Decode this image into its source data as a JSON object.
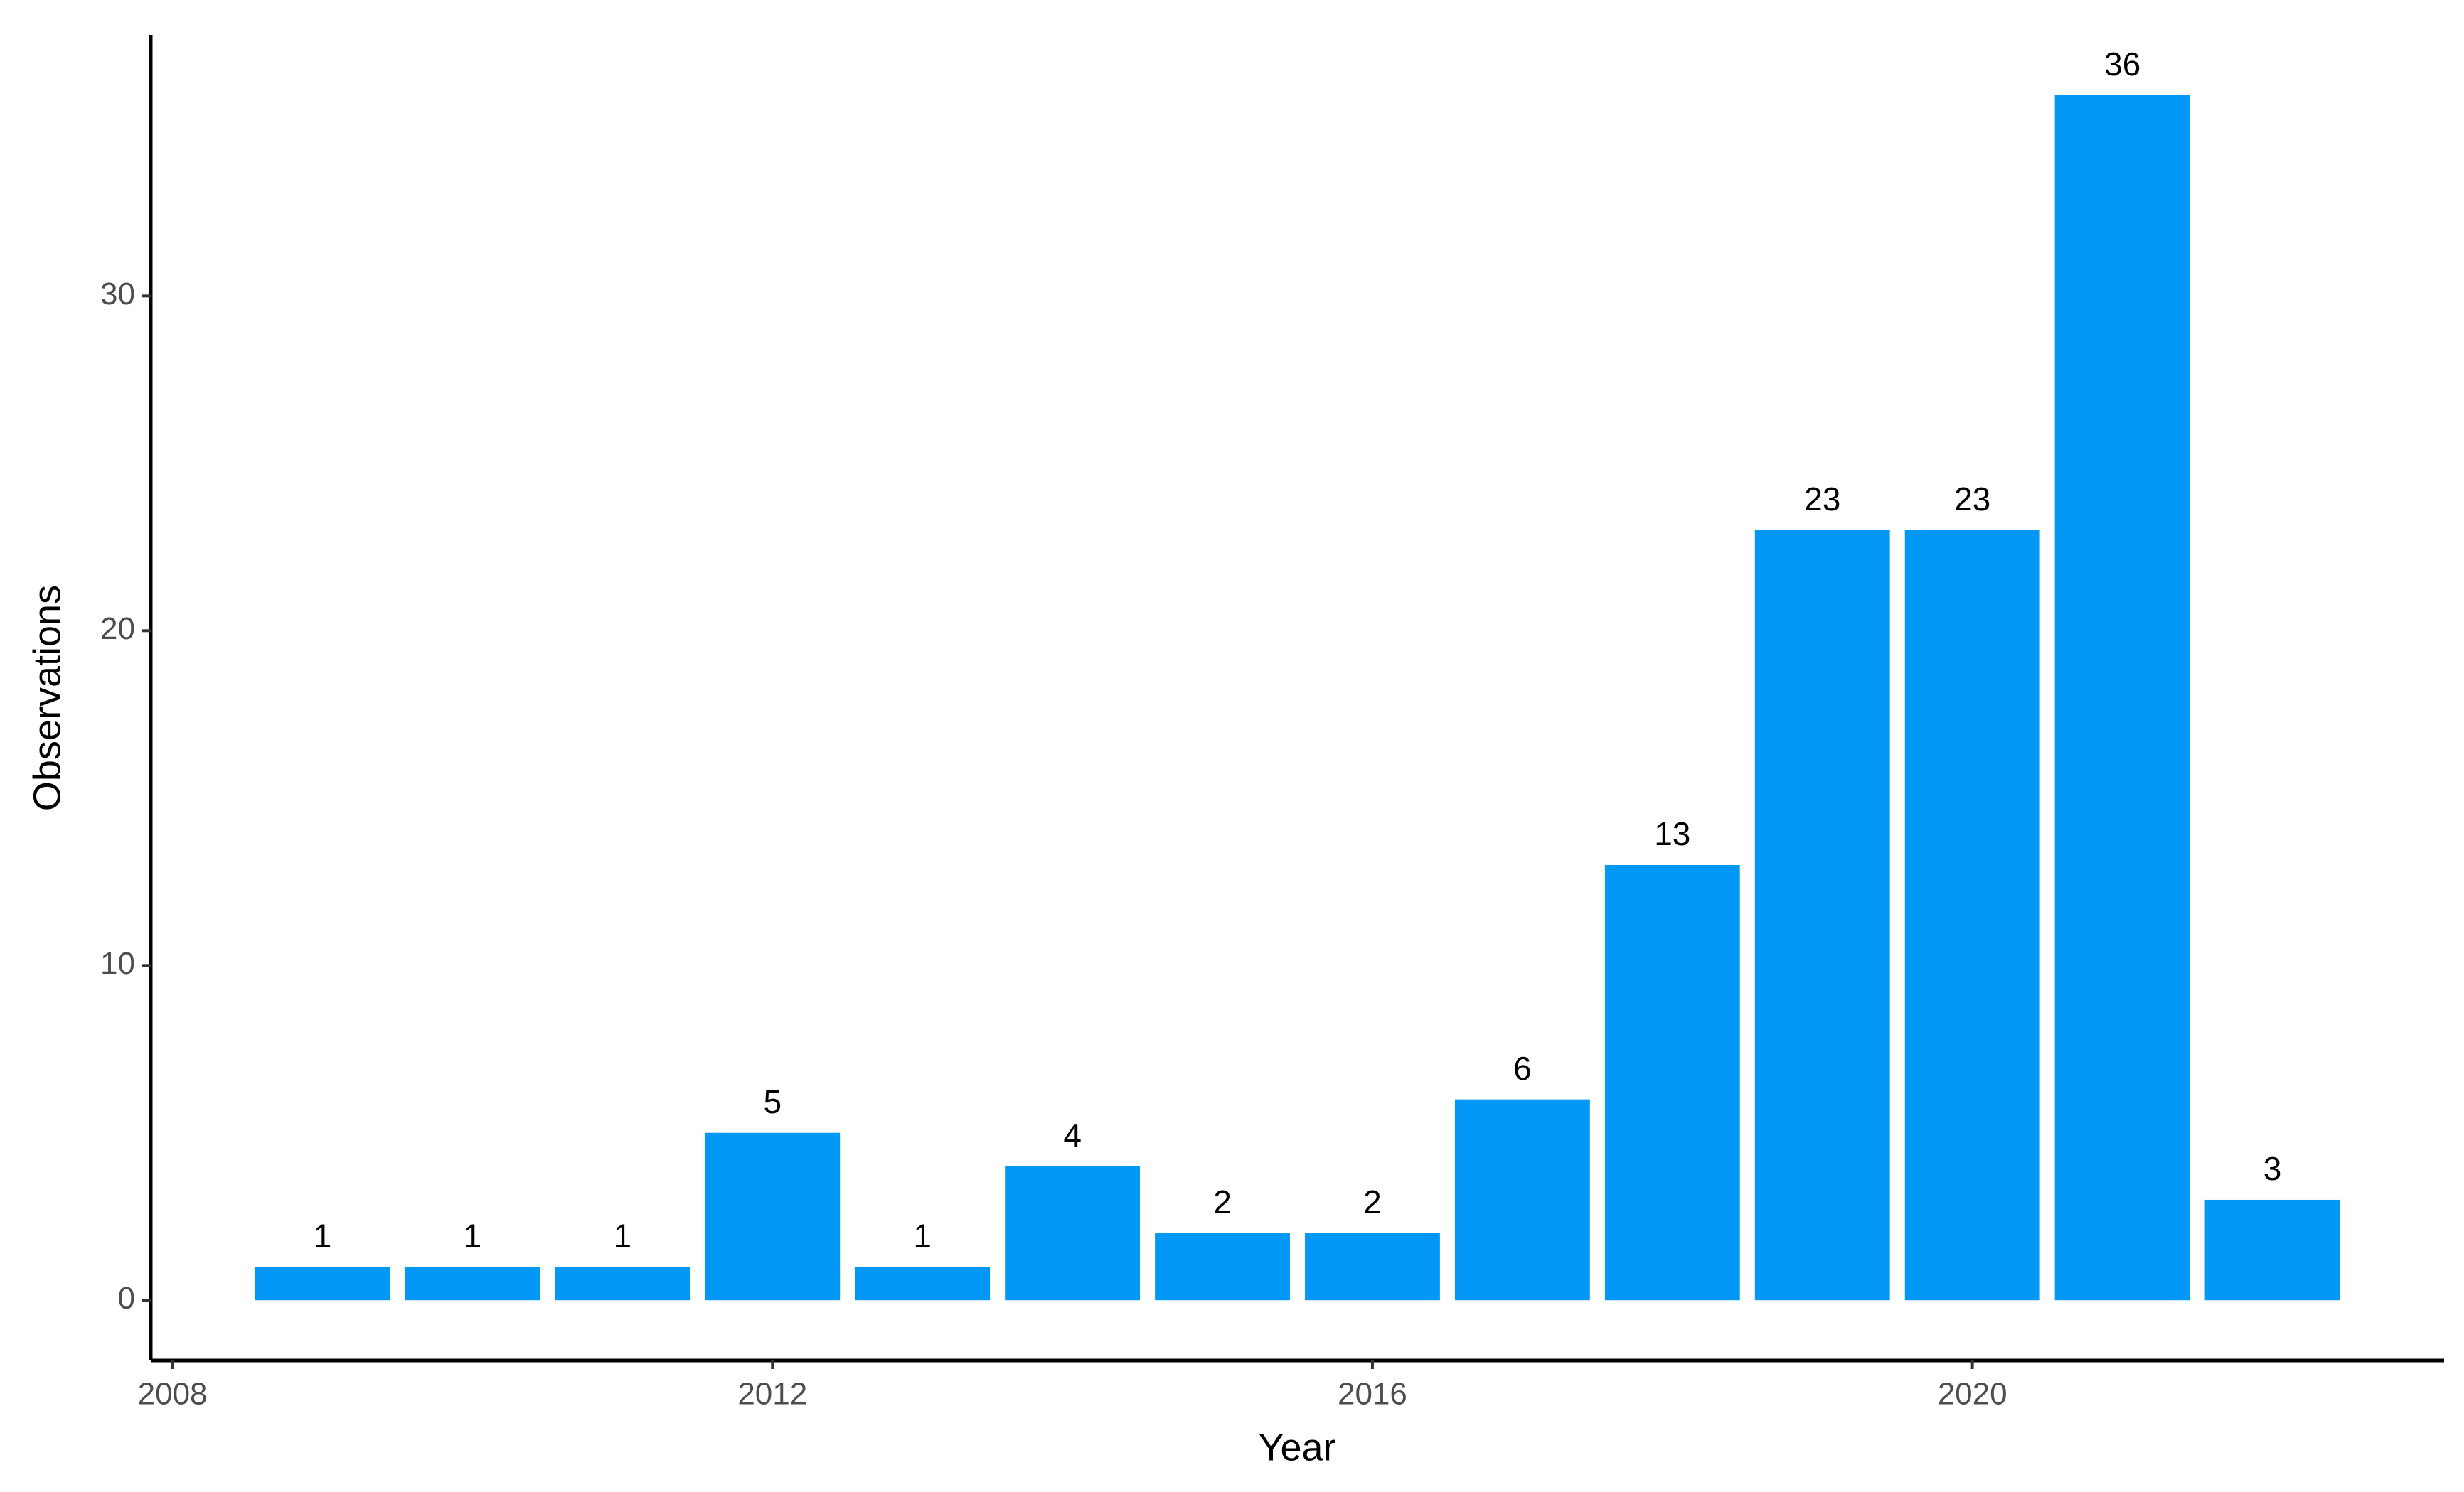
{
  "chart_data": {
    "type": "bar",
    "x": [
      2009,
      2010,
      2011,
      2012,
      2013,
      2014,
      2015,
      2016,
      2017,
      2018,
      2019,
      2020,
      2021,
      2022
    ],
    "values": [
      1,
      1,
      1,
      5,
      1,
      4,
      2,
      2,
      6,
      13,
      23,
      23,
      36,
      3
    ],
    "color": "#0398f5",
    "x_label": "Year",
    "y_label": "Observations",
    "xlim": [
      2007.855,
      2023.145
    ],
    "xticks": [
      2008,
      2012,
      2016,
      2020
    ],
    "ylim": [
      -1.8,
      37.8
    ],
    "yticks": [
      0,
      10,
      20,
      30
    ],
    "grid": false
  }
}
